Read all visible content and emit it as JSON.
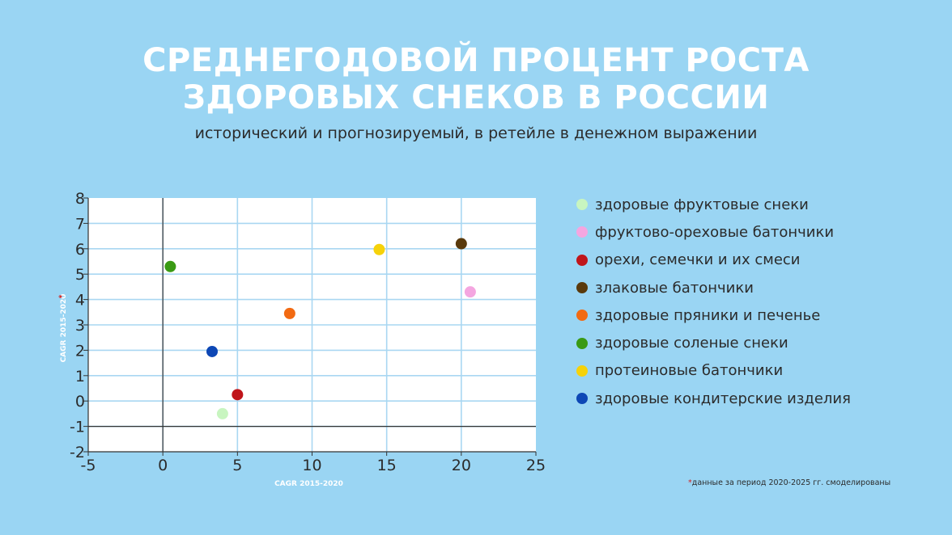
{
  "title_line1": "СРЕДНЕГОДОВОЙ ПРОЦЕНТ РОСТА",
  "title_line2": "ЗДОРОВЫХ СНЕКОВ В РОССИИ",
  "subtitle": "исторический и прогнозируемый, в ретейле в денежном выражении",
  "footnote": {
    "star": "*",
    "text": "данные за период 2020-2025 гг. смоделированы"
  },
  "chart_data": {
    "type": "scatter",
    "xlabel": "CAGR 2015-2020",
    "ylabel": "CAGR 2015-2020",
    "ylabel_marker": "*",
    "xlim": [
      -5,
      25
    ],
    "ylim": [
      -2,
      8
    ],
    "x_ticks": [
      -5,
      0,
      5,
      10,
      15,
      20,
      25
    ],
    "y_ticks": [
      -2,
      -1,
      0,
      1,
      2,
      3,
      4,
      5,
      6,
      7,
      8
    ],
    "grid": true,
    "legend_position": "right",
    "series": [
      {
        "name": "здоровые фруктовые снеки",
        "color": "#C8F5C0",
        "x": 4.0,
        "y": -0.5
      },
      {
        "name": "фруктово-ореховые батончики",
        "color": "#F4A6E0",
        "x": 20.6,
        "y": 4.3
      },
      {
        "name": "орехи, семечки и их смеси",
        "color": "#C0151A",
        "x": 5.0,
        "y": 0.25
      },
      {
        "name": "злаковые батончики",
        "color": "#5A3A0C",
        "x": 20.0,
        "y": 6.2
      },
      {
        "name": "здоровые пряники и печенье",
        "color": "#F26A12",
        "x": 8.5,
        "y": 3.45
      },
      {
        "name": "здоровые соленые снеки",
        "color": "#3A9A14",
        "x": 0.5,
        "y": 5.3
      },
      {
        "name": "протеиновые батончики",
        "color": "#F6D20A",
        "x": 14.5,
        "y": 5.97
      },
      {
        "name": "здоровые кондитерские изделия",
        "color": "#0D47B5",
        "x": 3.3,
        "y": 1.95
      }
    ]
  }
}
